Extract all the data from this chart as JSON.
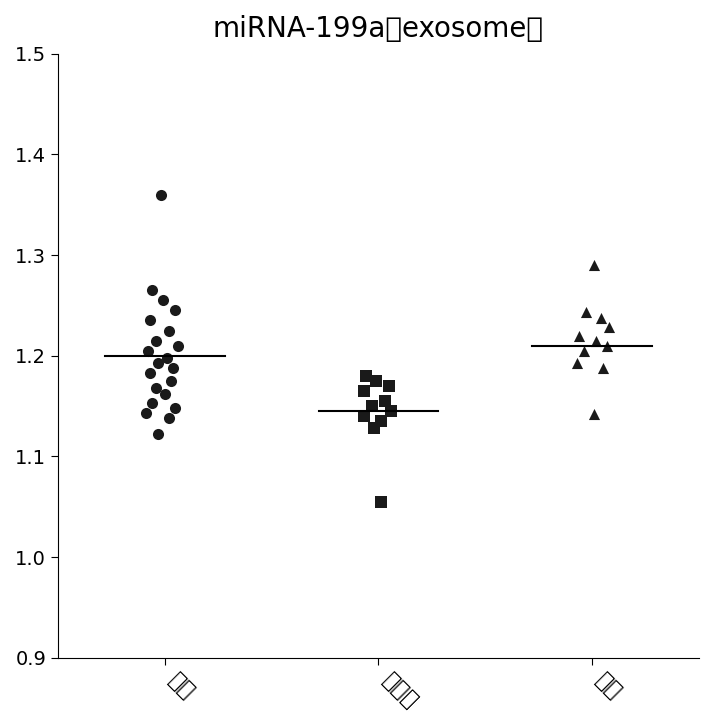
{
  "title": "miRNA-199a（exosome）",
  "categories": [
    "肝癌",
    "肝硬化",
    "正常"
  ],
  "x_positions": [
    1,
    2,
    3
  ],
  "ylim": [
    0.9,
    1.5
  ],
  "yticks": [
    0.9,
    1.0,
    1.1,
    1.2,
    1.3,
    1.4,
    1.5
  ],
  "group1_points": [
    [
      0.98,
      1.36
    ],
    [
      0.94,
      1.265
    ],
    [
      0.99,
      1.255
    ],
    [
      1.05,
      1.245
    ],
    [
      0.93,
      1.235
    ],
    [
      1.02,
      1.225
    ],
    [
      0.96,
      1.215
    ],
    [
      1.06,
      1.21
    ],
    [
      0.92,
      1.205
    ],
    [
      1.01,
      1.198
    ],
    [
      0.97,
      1.193
    ],
    [
      1.04,
      1.188
    ],
    [
      0.93,
      1.183
    ],
    [
      1.03,
      1.175
    ],
    [
      0.96,
      1.168
    ],
    [
      1.0,
      1.162
    ],
    [
      0.94,
      1.153
    ],
    [
      1.05,
      1.148
    ],
    [
      0.91,
      1.143
    ],
    [
      1.02,
      1.138
    ],
    [
      0.97,
      1.122
    ]
  ],
  "group1_median": 1.2,
  "group2_points": [
    [
      1.94,
      1.18
    ],
    [
      1.99,
      1.175
    ],
    [
      2.05,
      1.17
    ],
    [
      1.93,
      1.165
    ],
    [
      2.03,
      1.155
    ],
    [
      1.97,
      1.15
    ],
    [
      2.06,
      1.145
    ],
    [
      1.93,
      1.14
    ],
    [
      2.01,
      1.135
    ],
    [
      1.98,
      1.128
    ],
    [
      2.01,
      1.055
    ]
  ],
  "group2_median": 1.145,
  "group3_points": [
    [
      3.01,
      1.29
    ],
    [
      2.97,
      1.243
    ],
    [
      3.04,
      1.237
    ],
    [
      3.08,
      1.228
    ],
    [
      2.94,
      1.22
    ],
    [
      3.02,
      1.215
    ],
    [
      3.07,
      1.21
    ],
    [
      2.96,
      1.205
    ],
    [
      2.93,
      1.193
    ],
    [
      3.05,
      1.188
    ],
    [
      3.01,
      1.142
    ]
  ],
  "group3_median": 1.21,
  "marker_color": "#1a1a1a",
  "line_color": "#000000",
  "marker_size": 8,
  "title_fontsize": 20,
  "tick_fontsize": 14,
  "label_fontsize": 16,
  "spine_color": "#000000"
}
